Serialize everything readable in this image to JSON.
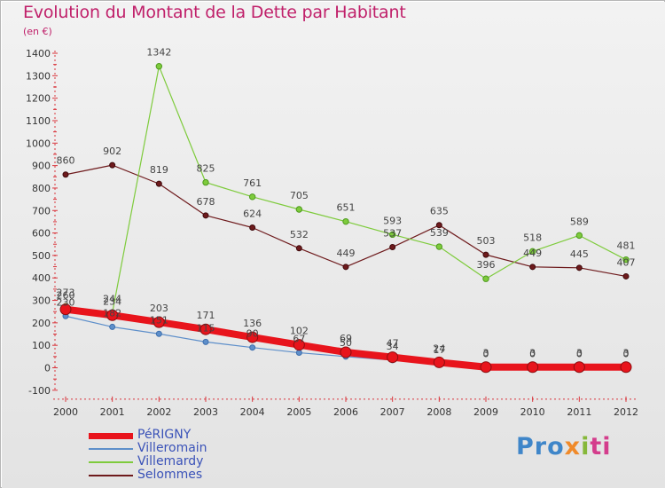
{
  "title": "Evolution du Montant de la Dette par Habitant",
  "unit": "(en €)",
  "colors": {
    "perigny": "#e8141c",
    "villeromain": "#5e8fca",
    "villemardy": "#7ecb3c",
    "selommes": "#6e1a1c",
    "text": "#333333",
    "title": "#c0206a",
    "legend_text": "#3a52b8"
  },
  "legend": [
    {
      "name": "PéRIGNY",
      "color": "#e8141c",
      "width": "thick"
    },
    {
      "name": "Villeromain",
      "color": "#5e8fca",
      "width": "thin"
    },
    {
      "name": "Villemardy",
      "color": "#7ecb3c",
      "width": "thin"
    },
    {
      "name": "Selommes",
      "color": "#6e1a1c",
      "width": "thin"
    }
  ],
  "logo": {
    "p1": "Pro",
    "p2": "x",
    "p3": "i",
    "p4": "ti"
  },
  "chart_data": {
    "type": "line",
    "categories": [
      "2000",
      "2001",
      "2002",
      "2003",
      "2004",
      "2005",
      "2006",
      "2007",
      "2008",
      "2009",
      "2010",
      "2011",
      "2012"
    ],
    "ylim": [
      -100,
      1400
    ],
    "yticks": [
      -100,
      0,
      100,
      200,
      300,
      400,
      500,
      600,
      700,
      800,
      900,
      1000,
      1100,
      1200,
      1300,
      1400
    ],
    "grid": false,
    "legend_position": "bottom-left",
    "series": [
      {
        "name": "PéRIGNY",
        "values": [
          260,
          234,
          203,
          171,
          136,
          102,
          69,
          47,
          24,
          3,
          3,
          3,
          3
        ],
        "color": "#e8141c"
      },
      {
        "name": "Villeromain",
        "values": [
          230,
          182,
          151,
          115,
          90,
          67,
          50,
          34,
          17,
          0,
          0,
          0,
          0
        ],
        "color": "#5e8fca"
      },
      {
        "name": "Villemardy",
        "values": [
          273,
          244,
          1342,
          825,
          761,
          705,
          651,
          593,
          539,
          396,
          518,
          589,
          481
        ],
        "color": "#7ecb3c"
      },
      {
        "name": "Selommes",
        "values": [
          860,
          902,
          819,
          678,
          624,
          532,
          449,
          537,
          635,
          503,
          449,
          445,
          407
        ],
        "color": "#6e1a1c"
      }
    ],
    "labels": [
      {
        "series": "PéRIGNY",
        "values": [
          "260",
          "234",
          "203",
          "171",
          "136",
          "102",
          "69",
          "47",
          "24",
          "3",
          "3",
          "3",
          "3"
        ]
      },
      {
        "series": "Villeromain",
        "values": [
          "230",
          "182",
          "151",
          "115",
          "90",
          "67",
          "50",
          "34",
          "17",
          "0",
          "0",
          "0",
          "0"
        ]
      },
      {
        "series": "Villemardy",
        "values": [
          "273",
          "244",
          "1342",
          "825",
          "761",
          "705",
          "651",
          "593",
          "539",
          "396",
          "518",
          "589",
          "481"
        ]
      },
      {
        "series": "Selommes",
        "values": [
          "860",
          "902",
          "819",
          "678",
          "624",
          "532",
          "449",
          "537",
          "635",
          "503",
          "449",
          "445",
          "407"
        ]
      }
    ]
  }
}
